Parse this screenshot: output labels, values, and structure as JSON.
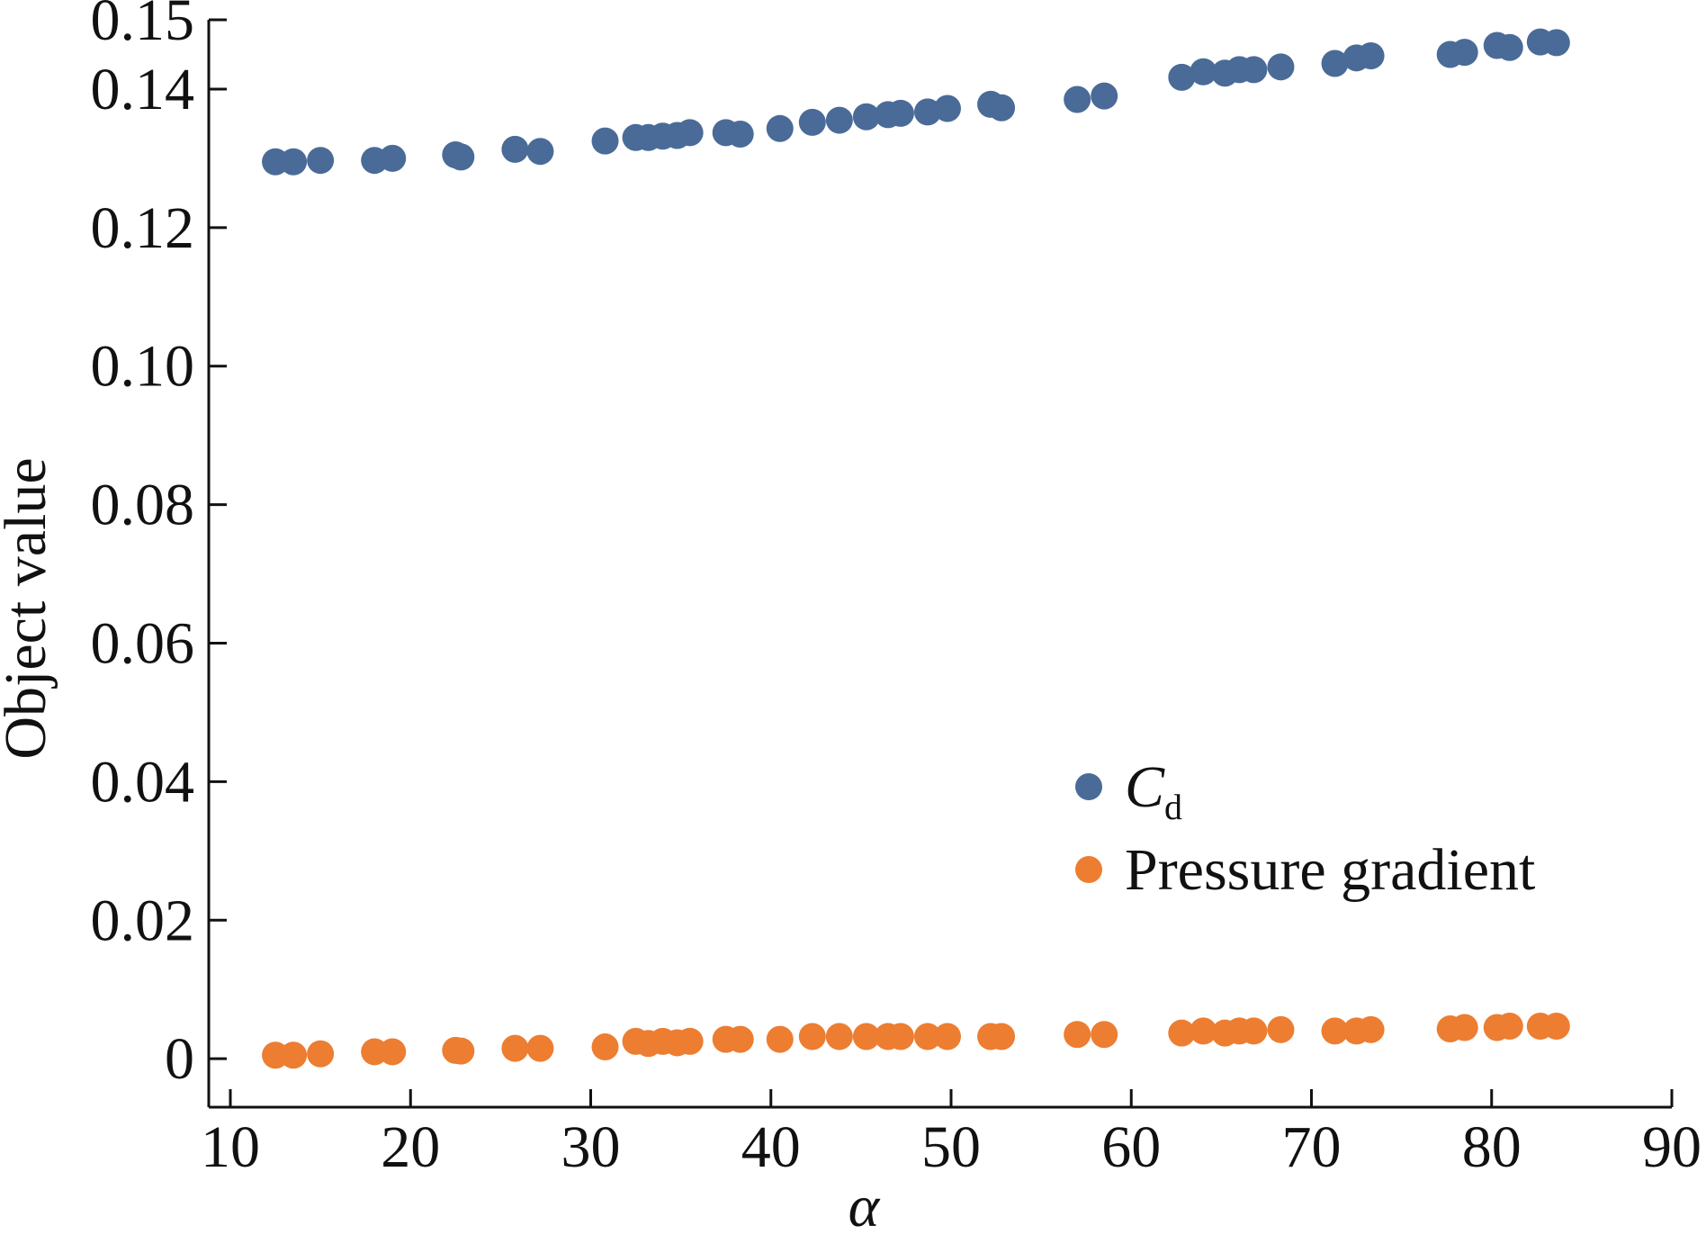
{
  "chart_data": {
    "type": "scatter",
    "xlabel": "α",
    "ylabel": "Object value",
    "xlim": [
      10,
      90
    ],
    "ylim": [
      -0.007,
      0.15
    ],
    "xticks": [
      10,
      20,
      30,
      40,
      50,
      60,
      70,
      80,
      90
    ],
    "xtick_labels": [
      "10",
      "20",
      "30",
      "40",
      "50",
      "60",
      "70",
      "80",
      "90"
    ],
    "yticks": [
      0,
      0.02,
      0.04,
      0.06,
      0.08,
      0.1,
      0.12,
      0.14,
      0.15
    ],
    "ytick_labels": [
      "0",
      "0.02",
      "0.04",
      "0.06",
      "0.08",
      "0.10",
      "0.12",
      "0.14",
      "0.15"
    ],
    "legend_position": "right-middle",
    "grid": false,
    "series": [
      {
        "name": "C",
        "name_subscript": "d",
        "color": "#4a6b98",
        "points": [
          [
            12.5,
            0.1295
          ],
          [
            13.5,
            0.1295
          ],
          [
            15.0,
            0.1297
          ],
          [
            18.0,
            0.1297
          ],
          [
            19.0,
            0.13
          ],
          [
            22.5,
            0.1305
          ],
          [
            22.8,
            0.1302
          ],
          [
            25.8,
            0.1313
          ],
          [
            27.2,
            0.131
          ],
          [
            30.8,
            0.1325
          ],
          [
            32.5,
            0.133
          ],
          [
            33.2,
            0.133
          ],
          [
            34.0,
            0.1332
          ],
          [
            34.8,
            0.1333
          ],
          [
            35.5,
            0.1337
          ],
          [
            37.5,
            0.1337
          ],
          [
            38.3,
            0.1335
          ],
          [
            40.5,
            0.1343
          ],
          [
            42.3,
            0.1352
          ],
          [
            43.8,
            0.1355
          ],
          [
            45.3,
            0.136
          ],
          [
            46.5,
            0.1363
          ],
          [
            47.2,
            0.1365
          ],
          [
            48.7,
            0.1367
          ],
          [
            49.8,
            0.1372
          ],
          [
            52.2,
            0.1378
          ],
          [
            52.8,
            0.1373
          ],
          [
            57.0,
            0.1385
          ],
          [
            58.5,
            0.139
          ],
          [
            62.8,
            0.1417
          ],
          [
            64.0,
            0.1425
          ],
          [
            65.2,
            0.1423
          ],
          [
            66.0,
            0.1428
          ],
          [
            66.8,
            0.1428
          ],
          [
            68.3,
            0.1432
          ],
          [
            71.3,
            0.1437
          ],
          [
            72.5,
            0.1445
          ],
          [
            73.3,
            0.1448
          ],
          [
            77.7,
            0.145
          ],
          [
            78.5,
            0.1453
          ],
          [
            80.3,
            0.1463
          ],
          [
            81.0,
            0.146
          ],
          [
            82.7,
            0.1468
          ],
          [
            83.6,
            0.1467
          ]
        ]
      },
      {
        "name": "Pressure gradient",
        "color": "#ed7d31",
        "points": [
          [
            12.5,
            0.0005
          ],
          [
            13.5,
            0.0005
          ],
          [
            15.0,
            0.0007
          ],
          [
            18.0,
            0.001
          ],
          [
            19.0,
            0.001
          ],
          [
            22.5,
            0.0012
          ],
          [
            22.8,
            0.0011
          ],
          [
            25.8,
            0.0015
          ],
          [
            27.2,
            0.0015
          ],
          [
            30.8,
            0.0017
          ],
          [
            32.5,
            0.0025
          ],
          [
            33.2,
            0.0022
          ],
          [
            34.0,
            0.0025
          ],
          [
            34.8,
            0.0023
          ],
          [
            35.5,
            0.0025
          ],
          [
            37.5,
            0.0028
          ],
          [
            38.3,
            0.0028
          ],
          [
            40.5,
            0.0028
          ],
          [
            42.3,
            0.0032
          ],
          [
            43.8,
            0.0032
          ],
          [
            45.3,
            0.0032
          ],
          [
            46.5,
            0.0032
          ],
          [
            47.2,
            0.0032
          ],
          [
            48.7,
            0.0032
          ],
          [
            49.8,
            0.0032
          ],
          [
            52.2,
            0.0032
          ],
          [
            52.8,
            0.0032
          ],
          [
            57.0,
            0.0035
          ],
          [
            58.5,
            0.0035
          ],
          [
            62.8,
            0.0037
          ],
          [
            64.0,
            0.004
          ],
          [
            65.2,
            0.0037
          ],
          [
            66.0,
            0.004
          ],
          [
            66.8,
            0.004
          ],
          [
            68.3,
            0.0042
          ],
          [
            71.3,
            0.004
          ],
          [
            72.5,
            0.004
          ],
          [
            73.3,
            0.0042
          ],
          [
            77.7,
            0.0043
          ],
          [
            78.5,
            0.0045
          ],
          [
            80.3,
            0.0045
          ],
          [
            81.0,
            0.0047
          ],
          [
            82.7,
            0.0047
          ],
          [
            83.6,
            0.0047
          ]
        ]
      }
    ]
  }
}
